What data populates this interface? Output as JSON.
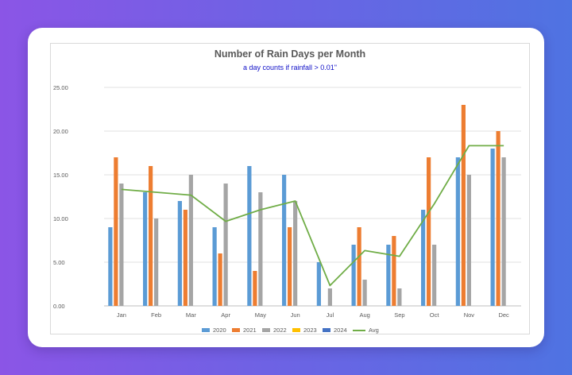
{
  "chart_data": {
    "type": "bar",
    "title": "Number of Rain Days per Month",
    "subtitle": "a day counts if rainfall > 0.01\"",
    "categories": [
      "Jan",
      "Feb",
      "Mar",
      "Apr",
      "May",
      "Jun",
      "Jul",
      "Aug",
      "Sep",
      "Oct",
      "Nov",
      "Dec"
    ],
    "y_ticks": [
      "0.00",
      "5.00",
      "10.00",
      "15.00",
      "20.00",
      "25.00"
    ],
    "ylim": [
      0,
      25
    ],
    "grid": true,
    "legend_position": "bottom",
    "series": [
      {
        "name": "2020",
        "kind": "bar",
        "color": "#5b9bd5",
        "values": [
          9,
          13,
          12,
          9,
          16,
          15,
          5,
          7,
          7,
          11,
          17,
          18
        ]
      },
      {
        "name": "2021",
        "kind": "bar",
        "color": "#ed7d31",
        "values": [
          17,
          16,
          11,
          6,
          4,
          9,
          0,
          9,
          8,
          17,
          23,
          20
        ]
      },
      {
        "name": "2022",
        "kind": "bar",
        "color": "#a5a5a5",
        "values": [
          14,
          10,
          15,
          14,
          13,
          12,
          2,
          3,
          2,
          7,
          15,
          17
        ]
      },
      {
        "name": "2023",
        "kind": "bar",
        "color": "#ffc000",
        "values": [
          0,
          0,
          0,
          0,
          0,
          0,
          0,
          0,
          0,
          0,
          0,
          0
        ]
      },
      {
        "name": "2024",
        "kind": "bar",
        "color": "#4472c4",
        "values": [
          0,
          0,
          0,
          0,
          0,
          0,
          0,
          0,
          0,
          0,
          0,
          0
        ]
      },
      {
        "name": "Avg",
        "kind": "line",
        "color": "#70ad47",
        "values": [
          13.33,
          13,
          12.67,
          9.67,
          11,
          12,
          2.33,
          6.33,
          5.67,
          11.67,
          18.33,
          18.33
        ]
      }
    ]
  }
}
